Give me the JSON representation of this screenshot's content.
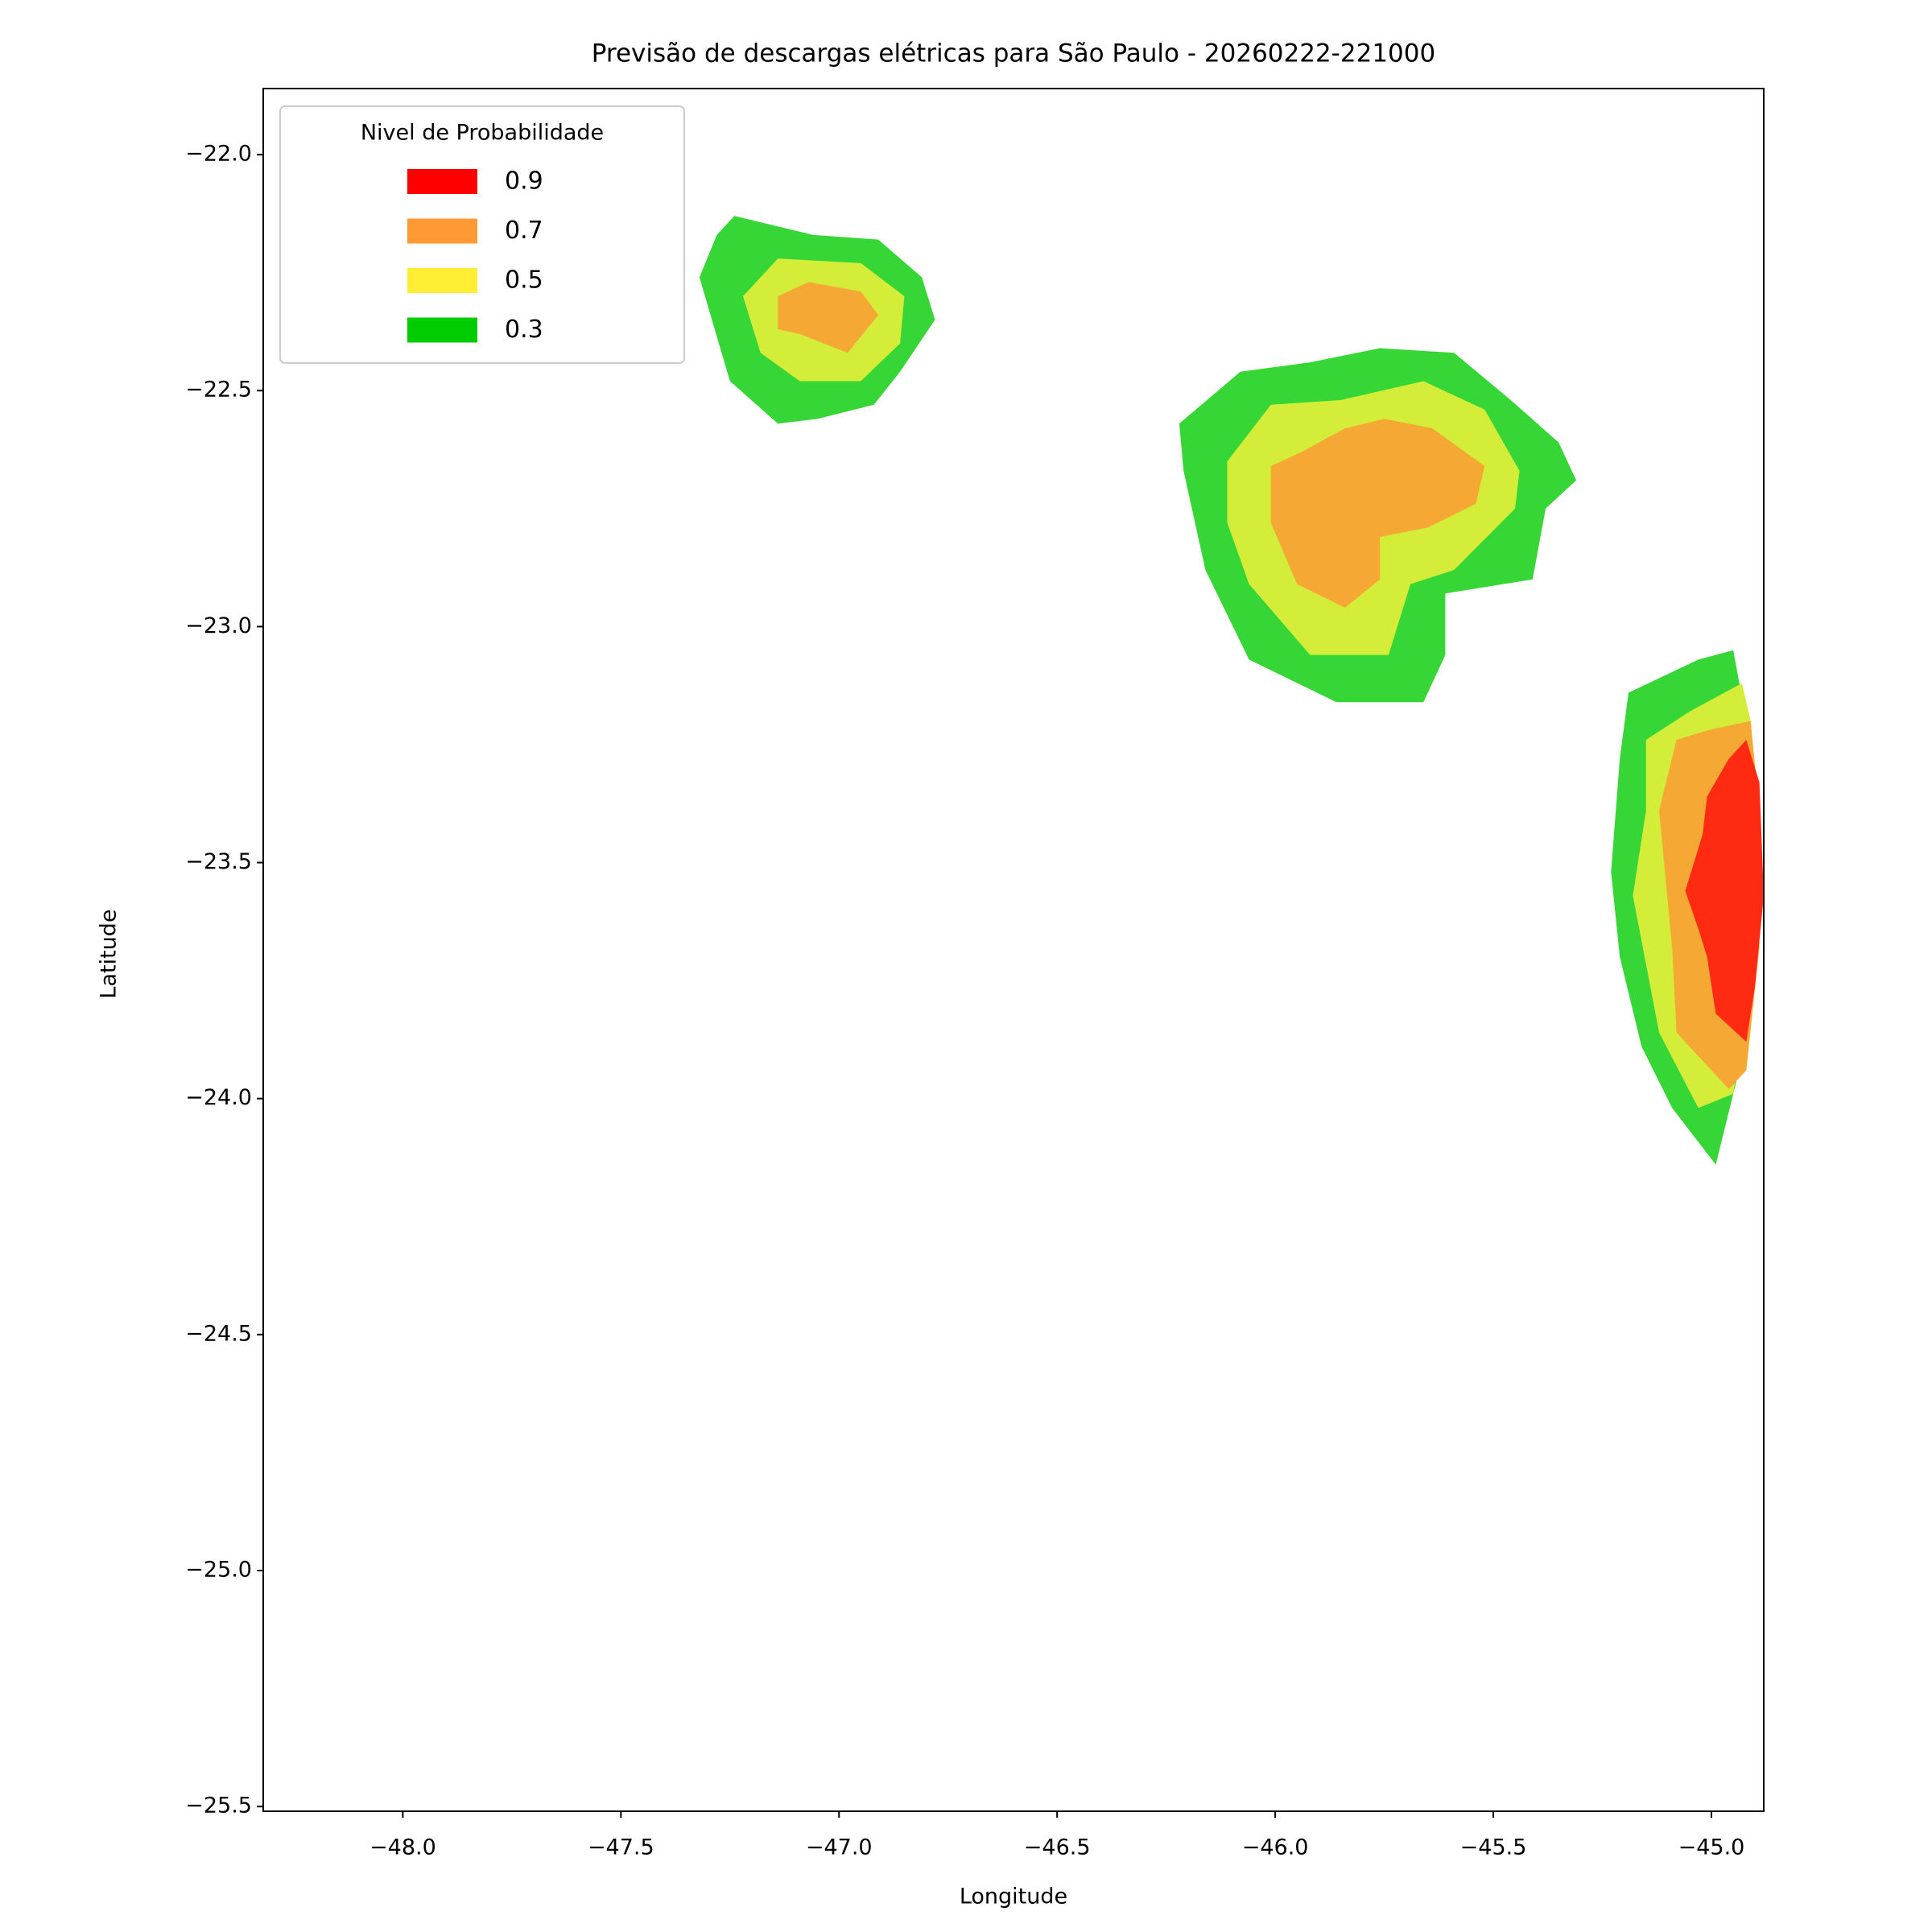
{
  "chart_data": {
    "type": "contour",
    "title": "Previsão de descargas elétricas para São Paulo - 20260222-221000",
    "x_label": "Longitude",
    "y_label": "Latitude",
    "xlim": [
      -48.32,
      -44.88
    ],
    "ylim": [
      -25.51,
      -21.86
    ],
    "xticks": [
      -48.0,
      -47.5,
      -47.0,
      -46.5,
      -46.0,
      -45.5,
      -45.0
    ],
    "yticks": [
      -22.0,
      -22.5,
      -23.0,
      -23.5,
      -24.0,
      -24.5,
      -25.0,
      -25.5
    ],
    "tick_format_decimals": 1,
    "legend_title": "Nivel de Probabilidade",
    "legend_position": "upper left",
    "series": [
      {
        "name": "0.9",
        "color": "#ff0000",
        "fill": "#ff2a12",
        "regions": [
          [
            [
              -44.96,
              -23.28
            ],
            [
              -44.92,
              -23.24
            ],
            [
              -44.89,
              -23.33
            ],
            [
              -44.88,
              -23.57
            ],
            [
              -44.9,
              -23.76
            ],
            [
              -44.92,
              -23.88
            ],
            [
              -44.99,
              -23.82
            ],
            [
              -45.01,
              -23.7
            ],
            [
              -45.03,
              -23.64
            ],
            [
              -45.06,
              -23.56
            ],
            [
              -45.02,
              -23.44
            ],
            [
              -45.01,
              -23.36
            ]
          ]
        ]
      },
      {
        "name": "0.7",
        "color": "#ff9933",
        "fill": "#f5a834",
        "regions": [
          [
            [
              -47.14,
              -22.3
            ],
            [
              -47.07,
              -22.27
            ],
            [
              -46.95,
              -22.29
            ],
            [
              -46.91,
              -22.34
            ],
            [
              -46.98,
              -22.42
            ],
            [
              -47.09,
              -22.38
            ],
            [
              -47.14,
              -22.37
            ]
          ],
          [
            [
              -46.01,
              -22.66
            ],
            [
              -45.94,
              -22.63
            ],
            [
              -45.84,
              -22.58
            ],
            [
              -45.75,
              -22.56
            ],
            [
              -45.64,
              -22.58
            ],
            [
              -45.52,
              -22.66
            ],
            [
              -45.54,
              -22.74
            ],
            [
              -45.65,
              -22.79
            ],
            [
              -45.76,
              -22.81
            ],
            [
              -45.76,
              -22.9
            ],
            [
              -45.84,
              -22.96
            ],
            [
              -45.95,
              -22.91
            ],
            [
              -46.01,
              -22.78
            ]
          ],
          [
            [
              -45.08,
              -23.24
            ],
            [
              -45.01,
              -23.22
            ],
            [
              -44.91,
              -23.2
            ],
            [
              -44.89,
              -23.39
            ],
            [
              -44.89,
              -23.68
            ],
            [
              -44.92,
              -23.94
            ],
            [
              -44.96,
              -23.98
            ],
            [
              -45.08,
              -23.86
            ],
            [
              -45.09,
              -23.68
            ],
            [
              -45.12,
              -23.39
            ]
          ]
        ]
      },
      {
        "name": "0.5",
        "color": "#ffee33",
        "fill": "#d4ed38",
        "regions": [
          [
            [
              -47.14,
              -22.22
            ],
            [
              -46.95,
              -22.23
            ],
            [
              -46.85,
              -22.3
            ],
            [
              -46.86,
              -22.4
            ],
            [
              -46.95,
              -22.48
            ],
            [
              -47.09,
              -22.48
            ],
            [
              -47.18,
              -22.42
            ],
            [
              -47.22,
              -22.3
            ]
          ],
          [
            [
              -46.11,
              -22.65
            ],
            [
              -46.01,
              -22.53
            ],
            [
              -45.85,
              -22.52
            ],
            [
              -45.66,
              -22.48
            ],
            [
              -45.52,
              -22.54
            ],
            [
              -45.44,
              -22.67
            ],
            [
              -45.45,
              -22.75
            ],
            [
              -45.59,
              -22.88
            ],
            [
              -45.69,
              -22.91
            ],
            [
              -45.74,
              -23.06
            ],
            [
              -45.92,
              -23.06
            ],
            [
              -46.06,
              -22.91
            ],
            [
              -46.11,
              -22.78
            ]
          ],
          [
            [
              -45.15,
              -23.24
            ],
            [
              -45.05,
              -23.18
            ],
            [
              -44.93,
              -23.12
            ],
            [
              -44.91,
              -23.2
            ],
            [
              -44.89,
              -23.47
            ],
            [
              -44.91,
              -23.76
            ],
            [
              -44.95,
              -23.99
            ],
            [
              -45.03,
              -24.02
            ],
            [
              -45.12,
              -23.86
            ],
            [
              -45.18,
              -23.57
            ],
            [
              -45.15,
              -23.39
            ]
          ]
        ]
      },
      {
        "name": "0.3",
        "color": "#00cc00",
        "fill": "#35d635",
        "regions": [
          [
            [
              -47.24,
              -22.13
            ],
            [
              -47.06,
              -22.17
            ],
            [
              -46.91,
              -22.18
            ],
            [
              -46.81,
              -22.26
            ],
            [
              -46.78,
              -22.35
            ],
            [
              -46.86,
              -22.46
            ],
            [
              -46.92,
              -22.53
            ],
            [
              -47.05,
              -22.56
            ],
            [
              -47.14,
              -22.57
            ],
            [
              -47.25,
              -22.48
            ],
            [
              -47.32,
              -22.26
            ],
            [
              -47.28,
              -22.17
            ]
          ],
          [
            [
              -46.22,
              -22.57
            ],
            [
              -46.08,
              -22.46
            ],
            [
              -45.92,
              -22.44
            ],
            [
              -45.76,
              -22.41
            ],
            [
              -45.59,
              -22.42
            ],
            [
              -45.46,
              -22.52
            ],
            [
              -45.35,
              -22.61
            ],
            [
              -45.31,
              -22.69
            ],
            [
              -45.38,
              -22.75
            ],
            [
              -45.41,
              -22.9
            ],
            [
              -45.61,
              -22.93
            ],
            [
              -45.61,
              -23.06
            ],
            [
              -45.66,
              -23.16
            ],
            [
              -45.86,
              -23.16
            ],
            [
              -46.06,
              -23.07
            ],
            [
              -46.16,
              -22.88
            ],
            [
              -46.21,
              -22.67
            ]
          ],
          [
            [
              -45.19,
              -23.14
            ],
            [
              -45.03,
              -23.07
            ],
            [
              -44.95,
              -23.05
            ],
            [
              -44.92,
              -23.2
            ],
            [
              -44.89,
              -23.36
            ],
            [
              -44.88,
              -23.57
            ],
            [
              -44.91,
              -23.84
            ],
            [
              -44.95,
              -23.99
            ],
            [
              -44.99,
              -24.14
            ],
            [
              -45.09,
              -24.02
            ],
            [
              -45.16,
              -23.89
            ],
            [
              -45.21,
              -23.7
            ],
            [
              -45.23,
              -23.52
            ],
            [
              -45.21,
              -23.28
            ]
          ]
        ]
      }
    ]
  }
}
